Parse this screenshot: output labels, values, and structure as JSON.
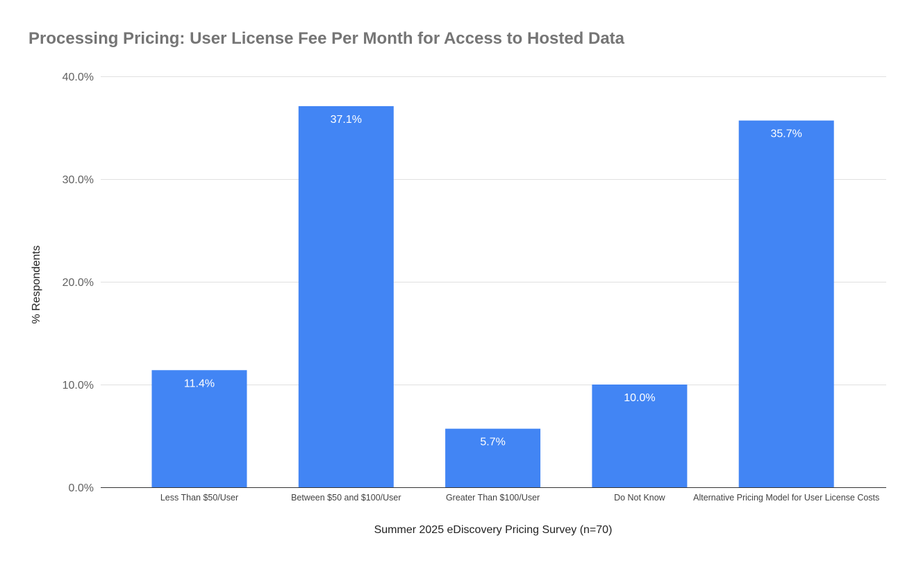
{
  "chart_data": {
    "type": "bar",
    "title": "Processing Pricing: User License Fee Per Month for Access to Hosted Data",
    "xlabel": "Summer 2025 eDiscovery Pricing Survey (n=70)",
    "ylabel": "% Respondents",
    "categories": [
      "Less Than $50/User",
      "Between $50 and $100/User",
      "Greater Than $100/User",
      "Do Not Know",
      "Alternative Pricing Model for User License Costs"
    ],
    "values": [
      11.4,
      37.1,
      5.7,
      10.0,
      35.7
    ],
    "data_labels": [
      "11.4%",
      "37.1%",
      "5.7%",
      "10.0%",
      "35.7%"
    ],
    "ylim": [
      0,
      40
    ],
    "yticks": [
      0,
      10,
      20,
      30,
      40
    ],
    "ytick_labels": [
      "0.0%",
      "10.0%",
      "20.0%",
      "30.0%",
      "40.0%"
    ],
    "grid": true,
    "legend": "none",
    "bar_color": "#4285F4"
  }
}
